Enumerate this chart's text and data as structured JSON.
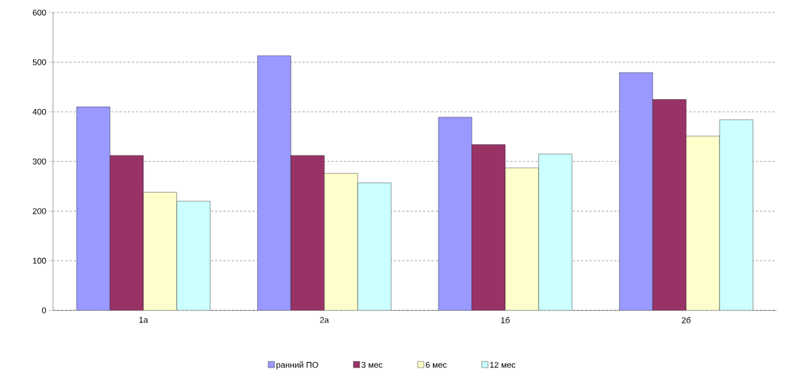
{
  "chart_data": {
    "type": "bar",
    "categories": [
      "1а",
      "2а",
      "1б",
      "2б"
    ],
    "series": [
      {
        "name": "ранний ПО",
        "color": "#9999ff",
        "values": [
          410,
          513,
          389,
          479
        ]
      },
      {
        "name": "3 мес",
        "color": "#993366",
        "values": [
          312,
          312,
          334,
          425
        ]
      },
      {
        "name": "6 мес",
        "color": "#ffffcc",
        "values": [
          238,
          276,
          287,
          351
        ]
      },
      {
        "name": "12 мес",
        "color": "#ccffff",
        "values": [
          220,
          257,
          315,
          384
        ]
      }
    ],
    "ylim": [
      0,
      600
    ],
    "yticks": [
      0,
      100,
      200,
      300,
      400,
      500,
      600
    ],
    "grid": "y",
    "legend": "bottom"
  }
}
